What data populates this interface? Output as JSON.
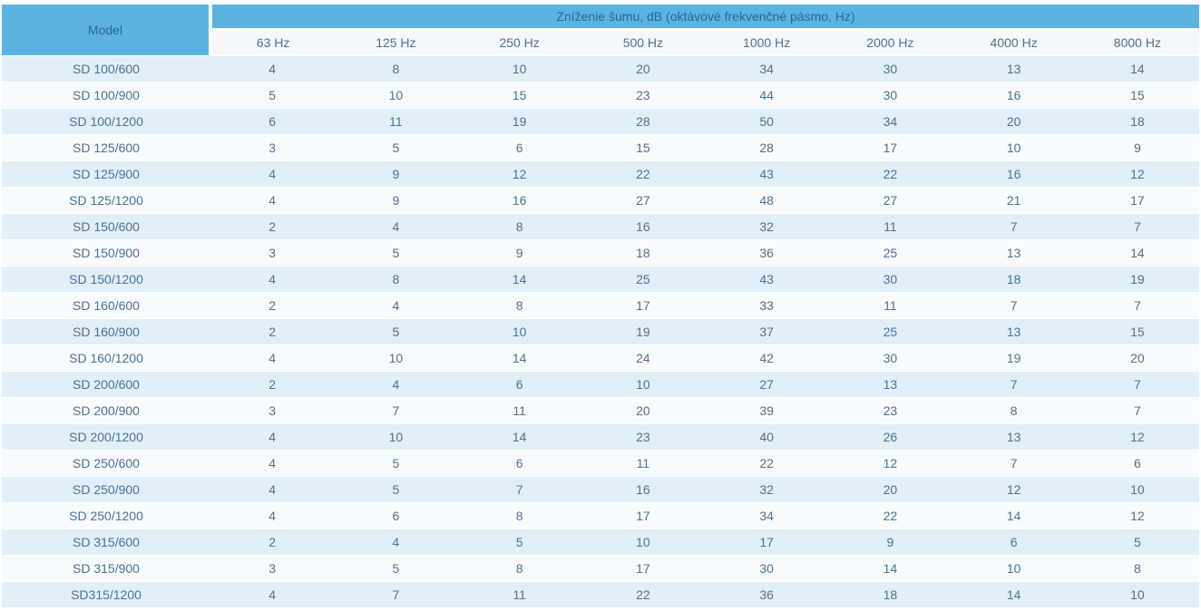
{
  "header": {
    "model_label": "Model",
    "group_label": "Zníženie šumu, dB (oktávové frekvenčné pásmo, Hz)"
  },
  "colors": {
    "header_blue": "#5bb3e0",
    "header_text": "#2a6496",
    "cell_text": "#4d7091",
    "row_odd_bg": "#e1eff8",
    "row_even_bg": "#f8fbfd",
    "subheader_bg": "#f5f8fa"
  },
  "chart_data": {
    "type": "table",
    "title": "Zníženie šumu, dB (oktávové frekvenčné pásmo, Hz)",
    "row_header": "Model",
    "categories": [
      "63 Hz",
      "125 Hz",
      "250 Hz",
      "500 Hz",
      "1000 Hz",
      "2000 Hz",
      "4000 Hz",
      "8000 Hz"
    ],
    "series": [
      {
        "name": "SD 100/600",
        "values": [
          4,
          8,
          10,
          20,
          34,
          30,
          13,
          14
        ]
      },
      {
        "name": "SD 100/900",
        "values": [
          5,
          10,
          15,
          23,
          44,
          30,
          16,
          15
        ]
      },
      {
        "name": "SD 100/1200",
        "values": [
          6,
          11,
          19,
          28,
          50,
          34,
          20,
          18
        ]
      },
      {
        "name": "SD 125/600",
        "values": [
          3,
          5,
          6,
          15,
          28,
          17,
          10,
          9
        ]
      },
      {
        "name": "SD 125/900",
        "values": [
          4,
          9,
          12,
          22,
          43,
          22,
          16,
          12
        ]
      },
      {
        "name": "SD 125/1200",
        "values": [
          4,
          9,
          16,
          27,
          48,
          27,
          21,
          17
        ]
      },
      {
        "name": "SD 150/600",
        "values": [
          2,
          4,
          8,
          16,
          32,
          11,
          7,
          7
        ]
      },
      {
        "name": "SD 150/900",
        "values": [
          3,
          5,
          9,
          18,
          36,
          25,
          13,
          14
        ]
      },
      {
        "name": "SD 150/1200",
        "values": [
          4,
          8,
          14,
          25,
          43,
          30,
          18,
          19
        ]
      },
      {
        "name": "SD 160/600",
        "values": [
          2,
          4,
          8,
          17,
          33,
          11,
          7,
          7
        ]
      },
      {
        "name": "SD 160/900",
        "values": [
          2,
          5,
          10,
          19,
          37,
          25,
          13,
          15
        ]
      },
      {
        "name": "SD 160/1200",
        "values": [
          4,
          10,
          14,
          24,
          42,
          30,
          19,
          20
        ]
      },
      {
        "name": "SD 200/600",
        "values": [
          2,
          4,
          6,
          10,
          27,
          13,
          7,
          7
        ]
      },
      {
        "name": "SD 200/900",
        "values": [
          3,
          7,
          11,
          20,
          39,
          23,
          8,
          7
        ]
      },
      {
        "name": "SD 200/1200",
        "values": [
          4,
          10,
          14,
          23,
          40,
          26,
          13,
          12
        ]
      },
      {
        "name": "SD 250/600",
        "values": [
          4,
          5,
          6,
          11,
          22,
          12,
          7,
          6
        ]
      },
      {
        "name": "SD 250/900",
        "values": [
          4,
          5,
          7,
          16,
          32,
          20,
          12,
          10
        ]
      },
      {
        "name": "SD 250/1200",
        "values": [
          4,
          6,
          8,
          17,
          34,
          22,
          14,
          12
        ]
      },
      {
        "name": "SD 315/600",
        "values": [
          2,
          4,
          5,
          10,
          17,
          9,
          6,
          5
        ]
      },
      {
        "name": "SD 315/900",
        "values": [
          3,
          5,
          8,
          17,
          30,
          14,
          10,
          8
        ]
      },
      {
        "name": "SD315/1200",
        "values": [
          4,
          7,
          11,
          22,
          36,
          18,
          14,
          10
        ]
      }
    ]
  }
}
